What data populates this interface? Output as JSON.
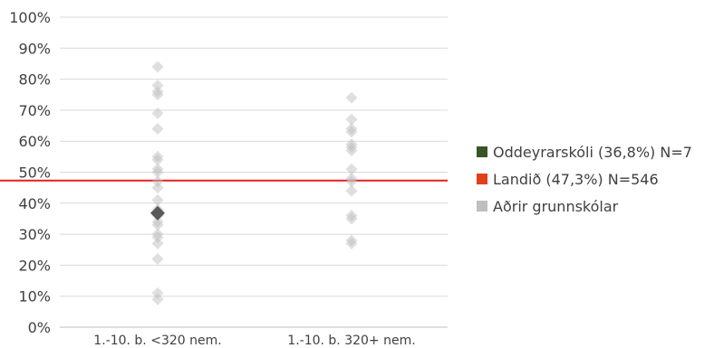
{
  "chart_data": {
    "type": "scatter",
    "y_ticks": [
      "0%",
      "10%",
      "20%",
      "30%",
      "40%",
      "50%",
      "60%",
      "70%",
      "80%",
      "90%",
      "100%"
    ],
    "ylim": [
      0,
      100
    ],
    "grid": true,
    "categories": [
      "1.-10. b. <320 nem.",
      "1.-10. b. 320+ nem."
    ],
    "series": [
      {
        "name": "Aðrir grunnskólar",
        "color": "#bfbfbf",
        "points": [
          {
            "category": 0,
            "value": 84
          },
          {
            "category": 0,
            "value": 78
          },
          {
            "category": 0,
            "value": 76
          },
          {
            "category": 0,
            "value": 75
          },
          {
            "category": 0,
            "value": 69
          },
          {
            "category": 0,
            "value": 64
          },
          {
            "category": 0,
            "value": 55
          },
          {
            "category": 0,
            "value": 54
          },
          {
            "category": 0,
            "value": 51
          },
          {
            "category": 0,
            "value": 50
          },
          {
            "category": 0,
            "value": 47
          },
          {
            "category": 0,
            "value": 45
          },
          {
            "category": 0,
            "value": 41
          },
          {
            "category": 0,
            "value": 38
          },
          {
            "category": 0,
            "value": 36
          },
          {
            "category": 0,
            "value": 34
          },
          {
            "category": 0,
            "value": 33
          },
          {
            "category": 0,
            "value": 30
          },
          {
            "category": 0,
            "value": 29
          },
          {
            "category": 0,
            "value": 27
          },
          {
            "category": 0,
            "value": 22
          },
          {
            "category": 0,
            "value": 11
          },
          {
            "category": 0,
            "value": 9
          },
          {
            "category": 1,
            "value": 74
          },
          {
            "category": 1,
            "value": 67
          },
          {
            "category": 1,
            "value": 64
          },
          {
            "category": 1,
            "value": 63
          },
          {
            "category": 1,
            "value": 59
          },
          {
            "category": 1,
            "value": 58
          },
          {
            "category": 1,
            "value": 57
          },
          {
            "category": 1,
            "value": 51
          },
          {
            "category": 1,
            "value": 48
          },
          {
            "category": 1,
            "value": 47
          },
          {
            "category": 1,
            "value": 44
          },
          {
            "category": 1,
            "value": 36
          },
          {
            "category": 1,
            "value": 35
          },
          {
            "category": 1,
            "value": 28
          },
          {
            "category": 1,
            "value": 27
          }
        ]
      },
      {
        "name": "Oddeyrarskóli (36,8%) N=7",
        "color": "#595959",
        "legend_color": "#375623",
        "points": [
          {
            "category": 0,
            "value": 36.8
          }
        ]
      }
    ],
    "reference_lines": [
      {
        "name": "Landið (47,3%) N=546",
        "value": 47.3,
        "color": "#e02020",
        "legend_color": "#e0401a"
      }
    ],
    "legend": {
      "placement": "right",
      "items": [
        {
          "label": "Oddeyrarskóli (36,8%) N=7",
          "color": "#375623"
        },
        {
          "label": "Landið (47,3%) N=546",
          "color": "#e0401a"
        },
        {
          "label": "Aðrir grunnskólar",
          "color": "#bfbfbf"
        }
      ]
    }
  }
}
